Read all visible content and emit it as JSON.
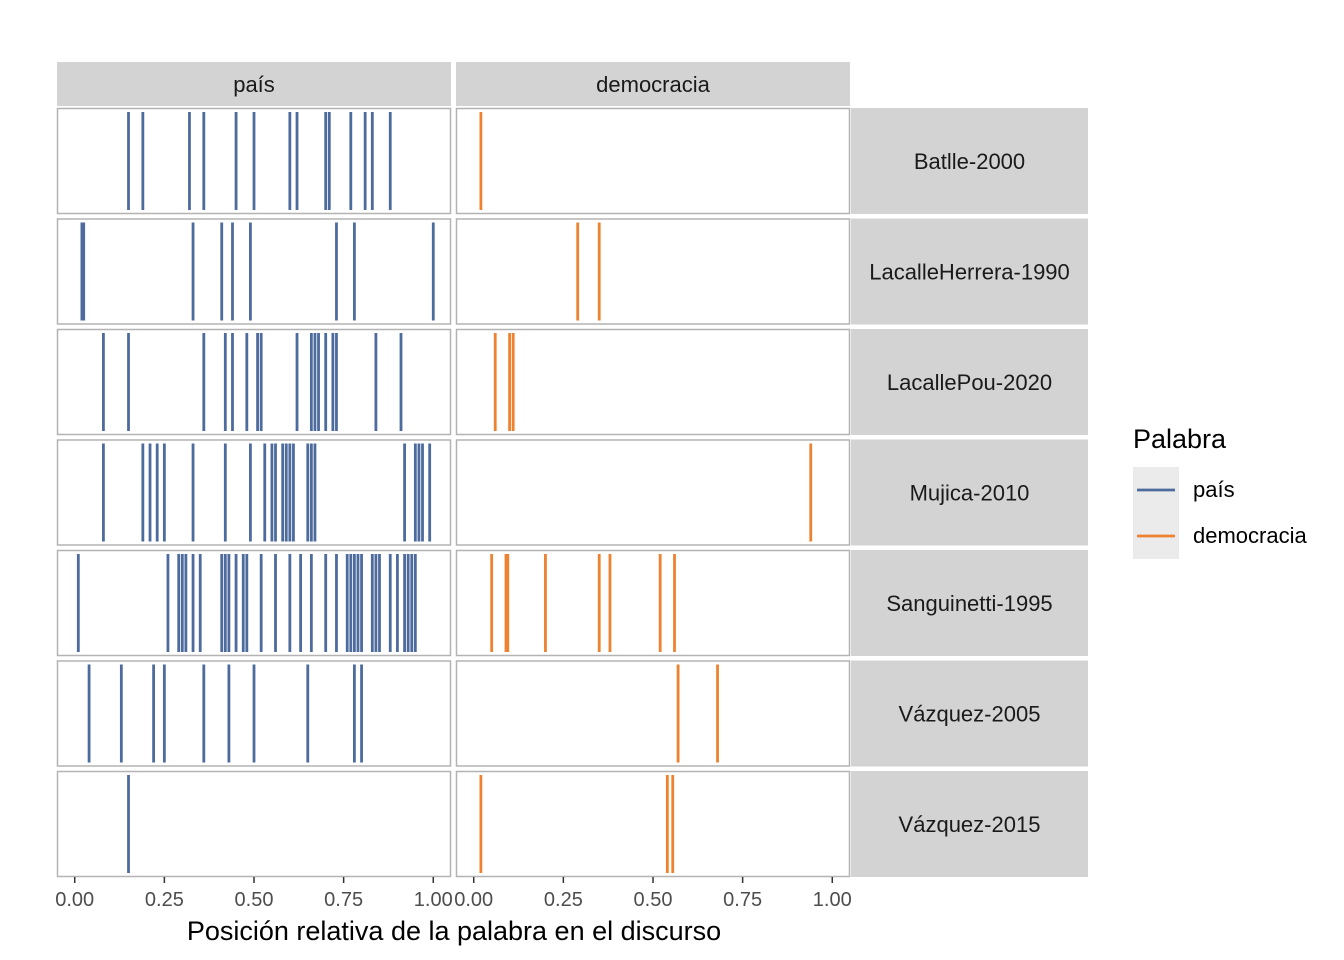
{
  "chart_data": {
    "type": "faceted-rug",
    "xlabel": "Posición relativa de la palabra en el discurso",
    "xlim": [
      0,
      1
    ],
    "x_ticks": [
      "0.00",
      "0.25",
      "0.50",
      "0.75",
      "1.00"
    ],
    "columns": [
      {
        "word": "país",
        "label": "país"
      },
      {
        "word": "democracia",
        "label": "democracia"
      }
    ],
    "rows": [
      {
        "label": "Batlle-2000",
        "data": {
          "país": [
            0.15,
            0.19,
            0.32,
            0.36,
            0.45,
            0.5,
            0.6,
            0.62,
            0.7,
            0.71,
            0.77,
            0.81,
            0.83,
            0.88
          ],
          "democracia": [
            0.02
          ]
        }
      },
      {
        "label": "LacalleHerrera-1990",
        "data": {
          "país": [
            0.02,
            0.025,
            0.33,
            0.41,
            0.44,
            0.49,
            0.73,
            0.78,
            1.0
          ],
          "democracia": [
            0.29,
            0.35
          ]
        }
      },
      {
        "label": "LacallePou-2020",
        "data": {
          "país": [
            0.08,
            0.15,
            0.36,
            0.42,
            0.44,
            0.48,
            0.51,
            0.52,
            0.62,
            0.66,
            0.67,
            0.68,
            0.7,
            0.72,
            0.73,
            0.84,
            0.91
          ],
          "democracia": [
            0.06,
            0.1,
            0.11
          ]
        }
      },
      {
        "label": "Mujica-2010",
        "data": {
          "país": [
            0.08,
            0.19,
            0.21,
            0.23,
            0.25,
            0.33,
            0.42,
            0.49,
            0.53,
            0.55,
            0.56,
            0.58,
            0.59,
            0.6,
            0.61,
            0.65,
            0.66,
            0.67,
            0.92,
            0.95,
            0.96,
            0.97,
            0.99
          ],
          "democracia": [
            0.94
          ]
        }
      },
      {
        "label": "Sanguinetti-1995",
        "data": {
          "país": [
            0.01,
            0.26,
            0.29,
            0.3,
            0.31,
            0.33,
            0.35,
            0.41,
            0.42,
            0.43,
            0.45,
            0.47,
            0.48,
            0.52,
            0.56,
            0.6,
            0.63,
            0.66,
            0.7,
            0.73,
            0.76,
            0.77,
            0.78,
            0.79,
            0.8,
            0.83,
            0.84,
            0.85,
            0.88,
            0.9,
            0.92,
            0.93,
            0.94,
            0.95
          ],
          "democracia": [
            0.05,
            0.09,
            0.095,
            0.2,
            0.35,
            0.38,
            0.52,
            0.56
          ]
        }
      },
      {
        "label": "Vázquez-2005",
        "data": {
          "país": [
            0.04,
            0.13,
            0.22,
            0.25,
            0.36,
            0.43,
            0.5,
            0.65,
            0.78,
            0.8
          ],
          "democracia": [
            0.57,
            0.68
          ]
        }
      },
      {
        "label": "Vázquez-2015",
        "data": {
          "país": [
            0.15
          ],
          "democracia": [
            0.02,
            0.54,
            0.555
          ]
        }
      }
    ],
    "legend": {
      "title": "Palabra",
      "placement": "right",
      "entries": [
        {
          "label": "país",
          "color": "#4E6B9E"
        },
        {
          "label": "democracia",
          "color": "#EE8230"
        }
      ]
    },
    "grid": false,
    "colors": {
      "país": "#4E6B9E",
      "democracia": "#EE8230",
      "strip_background": "#D3D3D3",
      "panel_border": "#B3B3B3",
      "tick_label": "#4D4D4D"
    }
  }
}
